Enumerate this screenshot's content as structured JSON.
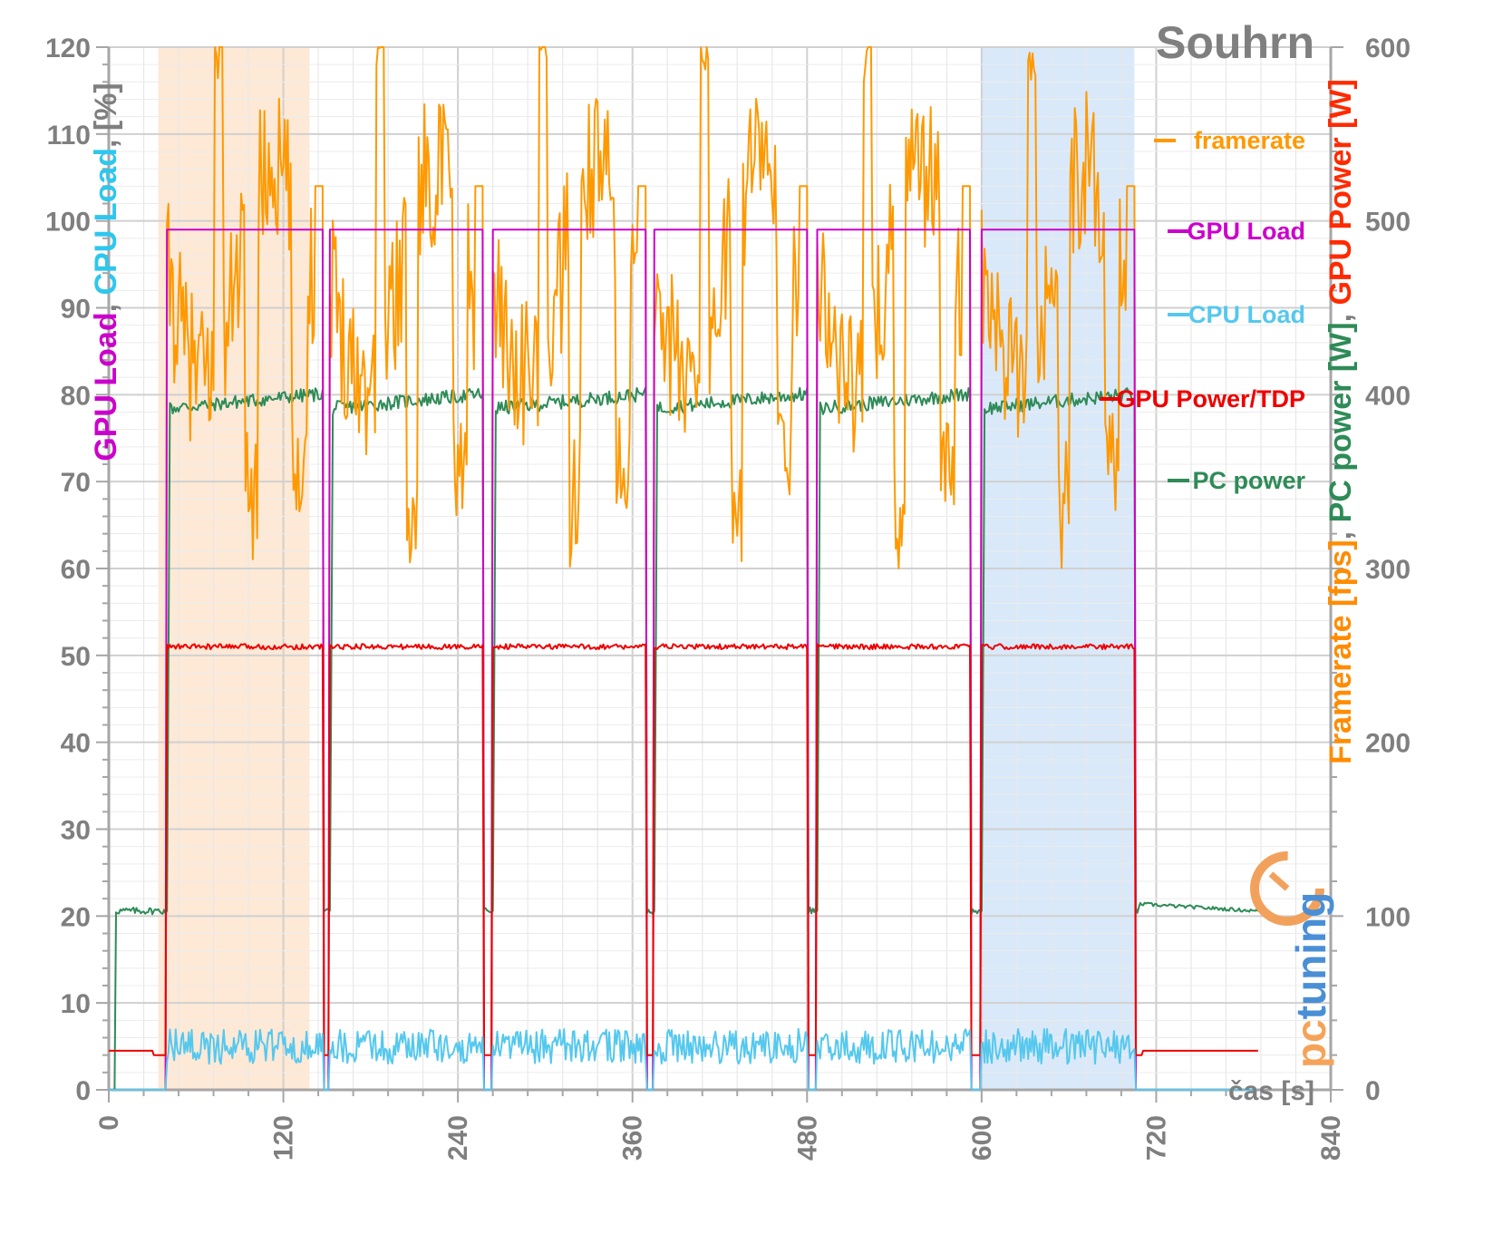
{
  "chart_data": {
    "type": "line",
    "title": "Souhrn",
    "xlabel": "čas [s]",
    "x_ticks": [
      "0",
      "120",
      "240",
      "360",
      "480",
      "600",
      "720",
      "840"
    ],
    "xlim": [
      0,
      840
    ],
    "ylim_left": [
      0,
      120
    ],
    "ylim_right": [
      0,
      600
    ],
    "y_ticks_left": [
      "0",
      "10",
      "20",
      "30",
      "40",
      "50",
      "60",
      "70",
      "80",
      "90",
      "100",
      "110",
      "120"
    ],
    "y_ticks_right": [
      "0",
      "100",
      "200",
      "300",
      "400",
      "500",
      "600"
    ],
    "ylabel_left": {
      "parts": [
        {
          "text": "GPU Load",
          "color": "#cc00cc"
        },
        {
          "text": ", ",
          "color": "#7f7f7f"
        },
        {
          "text": "CPU Load",
          "color": "#2ec7ee"
        },
        {
          "text": ", [%]",
          "color": "#7f7f7f"
        }
      ]
    },
    "ylabel_right": {
      "parts": [
        {
          "text": "Framerate [fps]",
          "color": "#ff8c00"
        },
        {
          "text": ", ",
          "color": "#7f7f7f"
        },
        {
          "text": "PC power [W]",
          "color": "#2e8b57"
        },
        {
          "text": ", ",
          "color": "#7f7f7f"
        },
        {
          "text": "GPU Power [W]",
          "color": "#ff2a00"
        }
      ]
    },
    "grid": true,
    "legend_position": "right",
    "highlight_bands": [
      {
        "from": 34,
        "to": 138,
        "color": "#fde4cc"
      },
      {
        "from": 600,
        "to": 705,
        "color": "#cfe3f8"
      }
    ],
    "segments": [
      [
        40,
        147
      ],
      [
        152,
        257
      ],
      [
        264,
        369
      ],
      [
        375,
        480
      ],
      [
        487,
        592
      ],
      [
        600,
        705
      ]
    ],
    "series": [
      {
        "name": "framerate",
        "axis": "right",
        "color": "#ff9900",
        "idle_value": 0,
        "peaks": [
          {
            "x": 75,
            "y": 600
          },
          {
            "x": 187,
            "y": 600
          },
          {
            "x": 299,
            "y": 600
          },
          {
            "x": 411,
            "y": 600
          },
          {
            "x": 523,
            "y": 600
          },
          {
            "x": 640,
            "y": 600
          }
        ],
        "dips": [
          {
            "x": 95,
            "y": 305
          },
          {
            "x": 237,
            "y": 290
          },
          {
            "x": 340,
            "y": 285
          },
          {
            "x": 455,
            "y": 280
          },
          {
            "x": 565,
            "y": 290
          },
          {
            "x": 680,
            "y": 280
          }
        ],
        "segment_start_value": 470,
        "segment_end_value": 540
      },
      {
        "name": "GPU Load",
        "axis": "left",
        "color": "#cc00cc",
        "idle_value": 0,
        "load_value": 99
      },
      {
        "name": "CPU Load",
        "axis": "left",
        "color": "#55c8ee",
        "idle_value": 0,
        "load_mean": 5,
        "load_range": [
          3,
          8
        ]
      },
      {
        "name": "GPU Power/TDP",
        "axis": "left",
        "color": "#ee0000",
        "idle_value": 4.5,
        "load_value": 51,
        "transition_low": 4,
        "spike": 55
      },
      {
        "name": "PC power",
        "axis": "right",
        "color": "#2e8b57",
        "idle_value": 103,
        "load_value": 400,
        "pre_start_value": 0,
        "post_value": 107,
        "dip_value": 103
      }
    ]
  },
  "logo": {
    "text": "pctuning"
  }
}
